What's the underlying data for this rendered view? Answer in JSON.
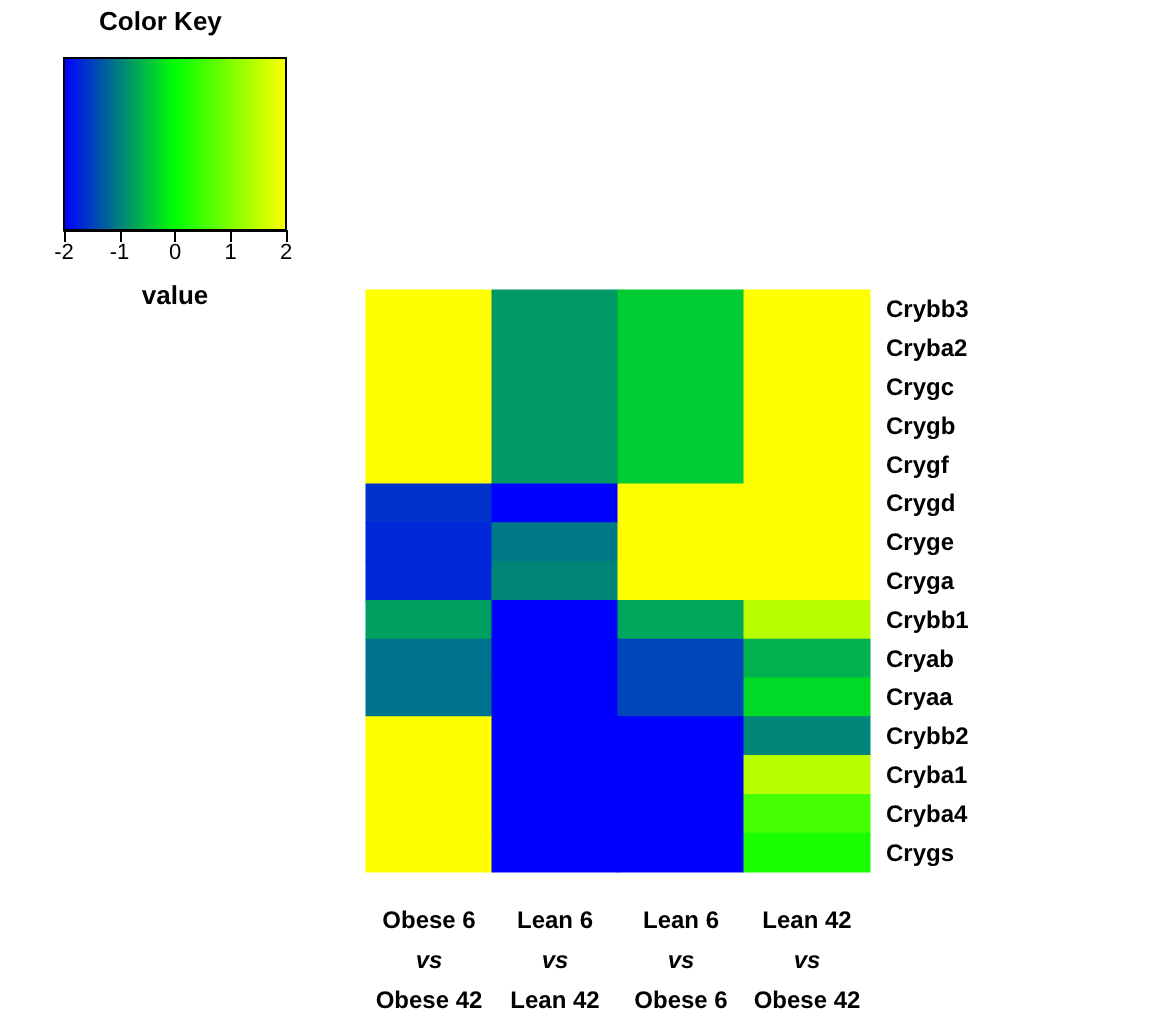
{
  "chart_data": {
    "type": "heatmap",
    "legend_title": "Color Key",
    "clabel": "value",
    "categories": [
      "Obese 6\nvs\nObese 42",
      "Lean 6\nvs\nLean 42",
      "Lean 6\nvs\nObese 6",
      "Lean 42\nvs\nObese 42"
    ],
    "y_categories": [
      "Crybb3",
      "Cryba2",
      "Crygc",
      "Crygb",
      "Crygf",
      "Crygd",
      "Cryge",
      "Cryga",
      "Crybb1",
      "Cryab",
      "Cryaa",
      "Crybb2",
      "Cryba1",
      "Cryba4",
      "Crygs"
    ],
    "cells": [
      [
        2,
        -0.8,
        -0.4,
        2
      ],
      [
        2,
        -0.8,
        -0.4,
        2
      ],
      [
        2,
        -0.8,
        -0.4,
        2
      ],
      [
        2,
        -0.8,
        -0.4,
        2
      ],
      [
        2,
        -0.8,
        -0.4,
        2
      ],
      [
        -1.6,
        -2,
        2,
        2
      ],
      [
        -1.7,
        -1.05,
        2,
        2
      ],
      [
        -1.7,
        -0.95,
        2,
        2
      ],
      [
        -0.75,
        -2,
        -0.7,
        1.45
      ],
      [
        -1.1,
        -2,
        -1.45,
        -0.6
      ],
      [
        -1.1,
        -2,
        -1.45,
        -0.3
      ],
      [
        2,
        -2,
        -2,
        -0.95
      ],
      [
        2,
        -2,
        -2,
        1.45
      ],
      [
        2,
        -2,
        -2,
        0.55
      ],
      [
        2,
        -2,
        -2,
        0.2
      ]
    ],
    "clim": [
      -2,
      2
    ],
    "cticks": [
      -2,
      -1,
      0,
      1,
      2
    ]
  }
}
